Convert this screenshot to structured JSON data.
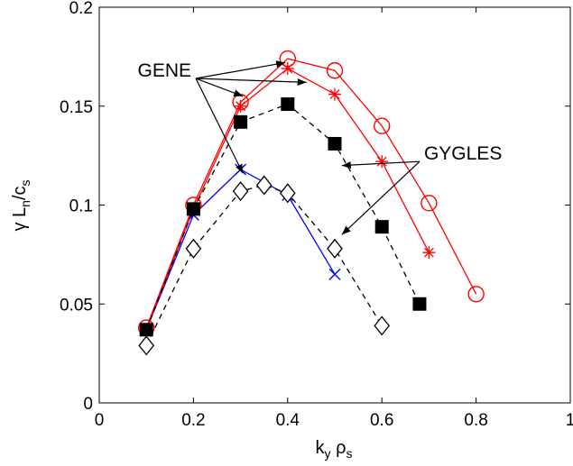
{
  "chart_data": {
    "type": "line",
    "xlabel": {
      "main": "k",
      "sub1": "y",
      "mid": " ρ",
      "sub2": "s"
    },
    "ylabel": {
      "p1": "γ L",
      "sub1": "n",
      "p2": "/c",
      "sub2": "s"
    },
    "xlim": [
      0,
      1
    ],
    "ylim": [
      0,
      0.2
    ],
    "xticks": [
      "0",
      "0.2",
      "0.4",
      "0.6",
      "0.8",
      "1"
    ],
    "yticks": [
      "0",
      "0.05",
      "0.1",
      "0.15",
      "0.2"
    ],
    "grid": false,
    "series": [
      {
        "marker": "x",
        "line": "solid",
        "color": "#0000ff",
        "x": [
          0.1,
          0.2,
          0.3,
          0.4,
          0.5
        ],
        "y": [
          0.037,
          0.095,
          0.118,
          0.105,
          0.065
        ]
      },
      {
        "marker": "circle",
        "line": "solid",
        "color": "#ff0000",
        "x": [
          0.1,
          0.2,
          0.3,
          0.4,
          0.5,
          0.6,
          0.7,
          0.8
        ],
        "y": [
          0.038,
          0.1,
          0.152,
          0.174,
          0.168,
          0.14,
          0.101,
          0.055
        ]
      },
      {
        "marker": "asterisk",
        "line": "solid",
        "color": "#ff0000",
        "x": [
          0.1,
          0.2,
          0.3,
          0.4,
          0.5,
          0.6,
          0.7
        ],
        "y": [
          0.037,
          0.098,
          0.15,
          0.169,
          0.156,
          0.122,
          0.076
        ]
      },
      {
        "marker": "square",
        "line": "dashed",
        "color": "#000000",
        "x": [
          0.1,
          0.2,
          0.3,
          0.4,
          0.5,
          0.6,
          0.68
        ],
        "y": [
          0.037,
          0.098,
          0.142,
          0.151,
          0.131,
          0.089,
          0.05
        ]
      },
      {
        "marker": "diamond",
        "line": "dashed",
        "color": "#000000",
        "x": [
          0.1,
          0.2,
          0.3,
          0.35,
          0.4,
          0.5,
          0.6
        ],
        "y": [
          0.029,
          0.078,
          0.107,
          0.11,
          0.106,
          0.078,
          0.039
        ]
      }
    ],
    "annotations": [
      {
        "text": "GENE",
        "arrows": [
          {
            "from": [
              0.205,
              0.164
            ],
            "to": [
              0.395,
              0.172
            ]
          },
          {
            "from": [
              0.205,
              0.164
            ],
            "to": [
              0.44,
              0.162
            ]
          },
          {
            "from": [
              0.205,
              0.164
            ],
            "to": [
              0.305,
              0.155
            ]
          },
          {
            "from": [
              0.205,
              0.164
            ],
            "to": [
              0.305,
              0.116
            ]
          }
        ]
      },
      {
        "text": "GYGLES",
        "arrows": [
          {
            "from": [
              0.68,
              0.122
            ],
            "to": [
              0.515,
              0.12
            ]
          },
          {
            "from": [
              0.68,
              0.122
            ],
            "to": [
              0.515,
              0.085
            ]
          }
        ]
      }
    ]
  }
}
